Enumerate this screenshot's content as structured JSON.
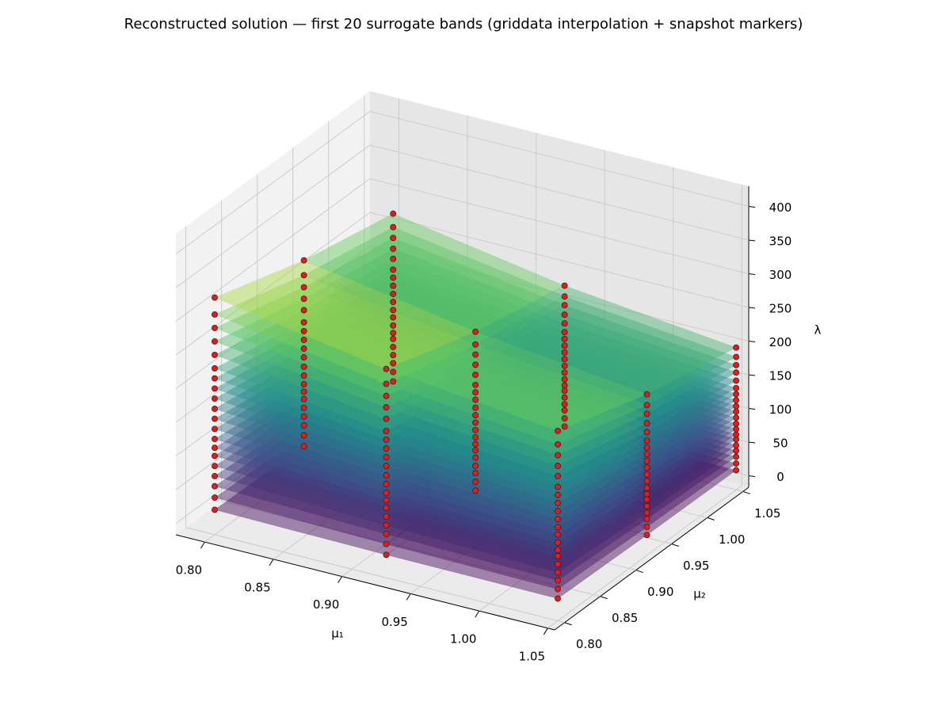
{
  "chart_data": {
    "type": "surface3d",
    "title": "Reconstructed solution — first 20 surrogate bands (griddata interpolation + snapshot markers)",
    "xlabel": "μ₁",
    "ylabel": "μ₂",
    "zlabel": "λ",
    "xlim": [
      0.779,
      1.055
    ],
    "ylim": [
      0.786,
      1.058
    ],
    "zlim": [
      -17,
      430
    ],
    "xticks": [
      {
        "value": 0.8,
        "label": "0.80"
      },
      {
        "value": 0.85,
        "label": "0.85"
      },
      {
        "value": 0.9,
        "label": "0.90"
      },
      {
        "value": 0.95,
        "label": "0.95"
      },
      {
        "value": 1.0,
        "label": "1.00"
      },
      {
        "value": 1.05,
        "label": "1.05"
      }
    ],
    "yticks": [
      {
        "value": 0.8,
        "label": "0.80"
      },
      {
        "value": 0.85,
        "label": "0.85"
      },
      {
        "value": 0.9,
        "label": "0.90"
      },
      {
        "value": 0.95,
        "label": "0.95"
      },
      {
        "value": 1.0,
        "label": "1.00"
      },
      {
        "value": 1.05,
        "label": "1.05"
      }
    ],
    "zticks": [
      0,
      50,
      100,
      150,
      200,
      250,
      300,
      350,
      400
    ],
    "grid": true,
    "colormap": [
      "#440154",
      "#3b528b",
      "#21918c",
      "#5ec962",
      "#fde725"
    ],
    "surface_opacity": 0.45,
    "marker_color": "#e41a1c",
    "marker_edge": "#222222",
    "mu1": [
      0.8,
      0.925,
      1.05
    ],
    "mu2": [
      0.8,
      0.925,
      1.05
    ],
    "bands": [
      [
        [
          20,
          17,
          16
        ],
        [
          17,
          15,
          13
        ],
        [
          16,
          13,
          12
        ]
      ],
      [
        [
          38,
          33,
          30
        ],
        [
          33,
          28,
          25
        ],
        [
          30,
          25,
          22
        ]
      ],
      [
        [
          55,
          48,
          43
        ],
        [
          48,
          41,
          37
        ],
        [
          43,
          37,
          32
        ]
      ],
      [
        [
          70,
          61,
          55
        ],
        [
          61,
          52,
          46
        ],
        [
          55,
          46,
          41
        ]
      ],
      [
        [
          85,
          74,
          67
        ],
        [
          74,
          64,
          56
        ],
        [
          67,
          56,
          49
        ]
      ],
      [
        [
          100,
          87,
          79
        ],
        [
          87,
          75,
          66
        ],
        [
          79,
          66,
          58
        ]
      ],
      [
        [
          112,
          98,
          88
        ],
        [
          98,
          84,
          74
        ],
        [
          88,
          74,
          65
        ]
      ],
      [
        [
          125,
          109,
          99
        ],
        [
          109,
          94,
          83
        ],
        [
          99,
          83,
          73
        ]
      ],
      [
        [
          140,
          122,
          111
        ],
        [
          122,
          105,
          93
        ],
        [
          111,
          93,
          81
        ]
      ],
      [
        [
          155,
          135,
          122
        ],
        [
          135,
          116,
          103
        ],
        [
          122,
          103,
          90
        ]
      ],
      [
        [
          170,
          149,
          134
        ],
        [
          149,
          127,
          113
        ],
        [
          134,
          113,
          99
        ]
      ],
      [
        [
          185,
          162,
          146
        ],
        [
          162,
          138,
          123
        ],
        [
          146,
          123,
          107
        ]
      ],
      [
        [
          200,
          175,
          158
        ],
        [
          175,
          150,
          133
        ],
        [
          158,
          133,
          116
        ]
      ],
      [
        [
          215,
          188,
          170
        ],
        [
          188,
          161,
          143
        ],
        [
          170,
          143,
          125
        ]
      ],
      [
        [
          230,
          201,
          182
        ],
        [
          201,
          172,
          153
        ],
        [
          182,
          153,
          134
        ]
      ],
      [
        [
          250,
          219,
          198
        ],
        [
          219,
          187,
          166
        ],
        [
          198,
          166,
          145
        ]
      ],
      [
        [
          270,
          236,
          213
        ],
        [
          236,
          202,
          179
        ],
        [
          213,
          179,
          157
        ]
      ],
      [
        [
          290,
          253,
          229
        ],
        [
          253,
          217,
          193
        ],
        [
          229,
          193,
          168
        ]
      ],
      [
        [
          310,
          271,
          245
        ],
        [
          271,
          232,
          206
        ],
        [
          245,
          206,
          180
        ]
      ],
      [
        [
          335,
          293,
          265
        ],
        [
          293,
          251,
          222
        ],
        [
          265,
          222,
          194
        ]
      ]
    ]
  }
}
